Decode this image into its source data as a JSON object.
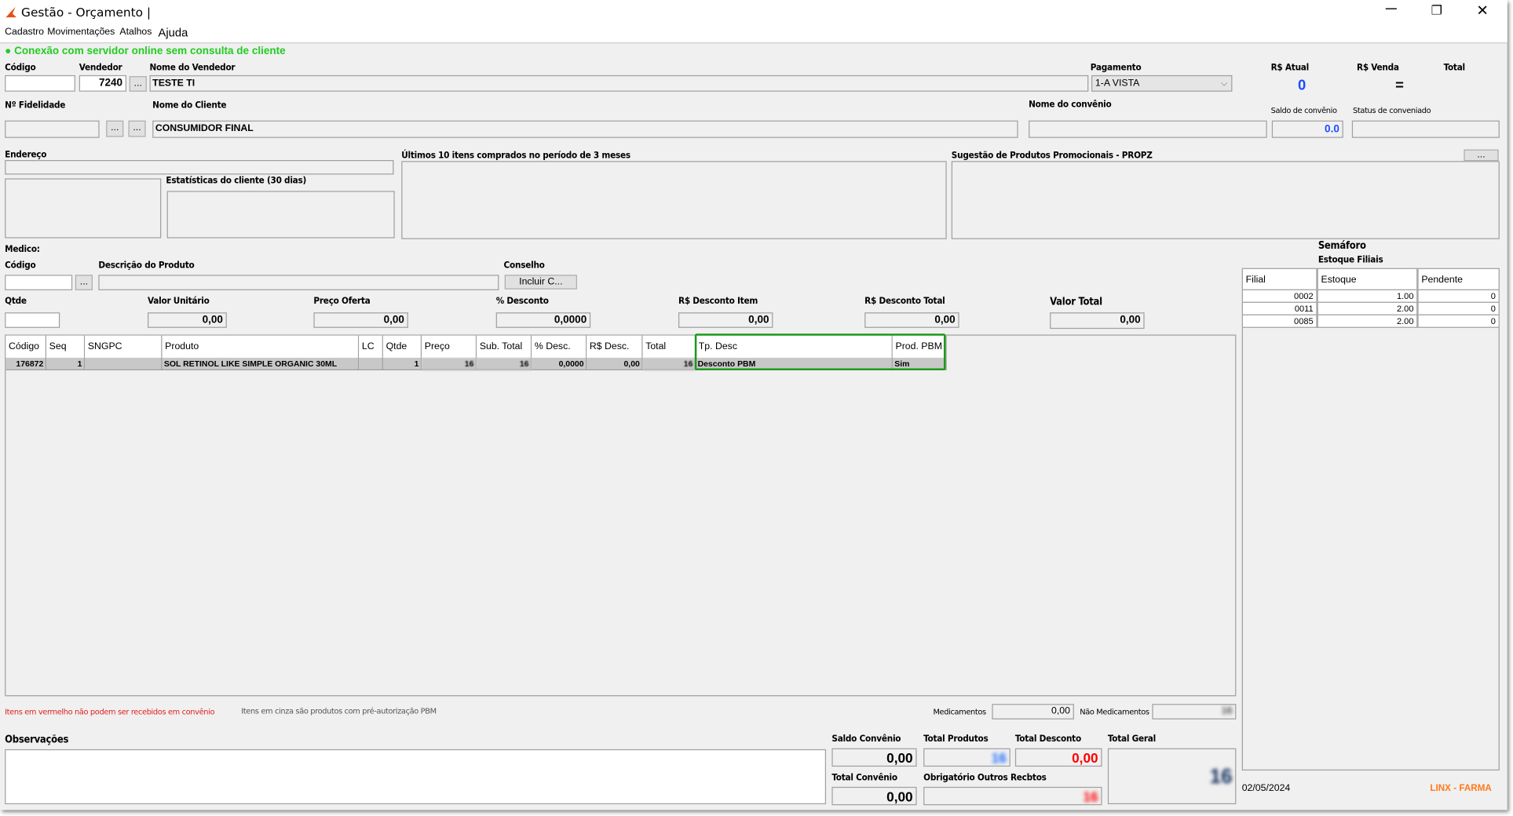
{
  "window": {
    "title": "Gestão - Orçamento |",
    "minimize_icon": "minimize-icon",
    "maximize_icon": "restore-icon",
    "close_icon": "close-icon"
  },
  "menu": [
    "Cadastro",
    "Movimentações",
    "Atalhos",
    "Ajuda"
  ],
  "status": {
    "text": "Conexão com servidor online sem consulta de cliente",
    "color": "#22cc22"
  },
  "header": {
    "codigo_label": "Código",
    "codigo_value": "",
    "vendedor_label": "Vendedor",
    "vendedor_value": "7240",
    "nome_vendedor_label": "Nome do Vendedor",
    "nome_vendedor_value": "TESTE TI",
    "pagamento_label": "Pagamento",
    "pagamento_value": "1-A VISTA",
    "rs_atual_label": "R$ Atual",
    "rs_atual_value": "0",
    "rs_venda_label": "R$ Venda",
    "rs_venda_value": "=",
    "total_label": "Total",
    "fidelidade_label": "Nº Fidelidade",
    "nome_cliente_label": "Nome do Cliente",
    "nome_cliente_value": "CONSUMIDOR FINAL",
    "convenio_label": "Nome do convênio",
    "saldo_convenio_label": "Saldo de convênio",
    "saldo_convenio_value": "0.0",
    "status_conveniado_label": "Status de conveniado",
    "ellipsis": "..."
  },
  "panels": {
    "endereco_label": "Endereço",
    "estatisticas_label": "Estatísticas do cliente  (30 dias)",
    "ultimos_label": "Últimos 10 itens comprados no período de 3 meses",
    "sugestao_label": "Sugestão de Produtos Promocionais - PROPZ"
  },
  "product": {
    "medico_label": "Medico:",
    "codigo_label": "Código",
    "descricao_label": "Descrição do Produto",
    "conselho_label": "Conselho",
    "incluir_button": "Incluir C...",
    "qtde_label": "Qtde",
    "valor_unitario_label": "Valor Unitário",
    "valor_unitario_value": "0,00",
    "preco_oferta_label": "Preço Oferta",
    "preco_oferta_value": "0,00",
    "pct_desconto_label": "% Desconto",
    "pct_desconto_value": "0,0000",
    "desc_item_label": "R$ Desconto Item",
    "desc_item_value": "0,00",
    "desc_total_label": "R$ Desconto Total",
    "desc_total_value": "0,00",
    "valor_total_label": "Valor Total",
    "valor_total_value": "0,00"
  },
  "semaforo": {
    "title": "Semáforo",
    "subtitle": "Estoque Filiais",
    "columns": [
      "Filial",
      "Estoque",
      "Pendente"
    ],
    "rows": [
      [
        "0002",
        "1.00",
        "0"
      ],
      [
        "0011",
        "2.00",
        "0"
      ],
      [
        "0085",
        "2.00",
        "0"
      ]
    ]
  },
  "grid": {
    "columns": [
      "Código",
      "Seq",
      "SNGPC",
      "Produto",
      "LC",
      "Qtde",
      "Preço",
      "Sub. Total",
      "% Desc.",
      "R$ Desc.",
      "Total",
      "Tp. Desc",
      "Prod. PBM"
    ],
    "rows": [
      [
        "176872",
        "1",
        "",
        "SOL RETINOL LIKE SIMPLE ORGANIC 30ML",
        "",
        "1",
        "16",
        "16",
        "0,0000",
        "0,00",
        "16",
        "Desconto PBM",
        "Sim"
      ]
    ],
    "highlight_color": "#1a9a1a"
  },
  "footer": {
    "note_red": "Itens em vermelho não podem ser recebidos em convênio",
    "note_gray": "Itens em cinza são produtos com pré-autorização PBM",
    "medicamentos_label": "Medicamentos",
    "medicamentos_value": "0,00",
    "nao_medicamentos_label": "Não Medicamentos",
    "nao_medicamentos_value": "16",
    "observacoes_label": "Observações",
    "saldo_convenio_label": "Saldo Convênio",
    "saldo_convenio_value": "0,00",
    "total_produtos_label": "Total Produtos",
    "total_produtos_value": "16",
    "total_desconto_label": "Total Desconto",
    "total_desconto_value": "0,00",
    "total_geral_label": "Total Geral",
    "total_geral_value": "16",
    "total_convenio_label": "Total Convênio",
    "total_convenio_value": "0,00",
    "outros_label": "Obrigatório Outros Recbtos",
    "outros_value": "16",
    "date": "02/05/2024",
    "brand": "LINX - FARMA",
    "brand_color": "#ff7a1a"
  }
}
